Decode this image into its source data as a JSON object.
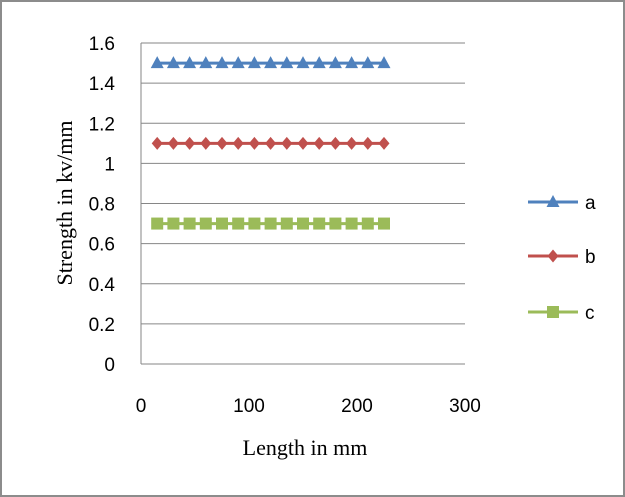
{
  "chart_data": {
    "type": "line",
    "title": "",
    "xlabel": "Length in mm",
    "ylabel": "Strength in kv/mm",
    "xlim": [
      0,
      300
    ],
    "ylim": [
      0,
      1.6
    ],
    "x_ticks": [
      "0",
      "100",
      "200",
      "300"
    ],
    "y_ticks": [
      "0",
      "0.2",
      "0.4",
      "0.6",
      "0.8",
      "1",
      "1.2",
      "1.4",
      "1.6"
    ],
    "grid": "horizontal",
    "legend_position": "right",
    "x": [
      15,
      30,
      45,
      60,
      75,
      90,
      105,
      120,
      135,
      150,
      165,
      180,
      195,
      210,
      225
    ],
    "series": [
      {
        "name": "a",
        "color": "#4F81BD",
        "marker": "triangle",
        "values": [
          1.5,
          1.5,
          1.5,
          1.5,
          1.5,
          1.5,
          1.5,
          1.5,
          1.5,
          1.5,
          1.5,
          1.5,
          1.5,
          1.5,
          1.5
        ]
      },
      {
        "name": "b",
        "color": "#C0504D",
        "marker": "diamond",
        "values": [
          1.1,
          1.1,
          1.1,
          1.1,
          1.1,
          1.1,
          1.1,
          1.1,
          1.1,
          1.1,
          1.1,
          1.1,
          1.1,
          1.1,
          1.1
        ]
      },
      {
        "name": "c",
        "color": "#9BBB59",
        "marker": "square",
        "values": [
          0.7,
          0.7,
          0.7,
          0.7,
          0.7,
          0.7,
          0.7,
          0.7,
          0.7,
          0.7,
          0.7,
          0.7,
          0.7,
          0.7,
          0.7
        ]
      }
    ]
  }
}
